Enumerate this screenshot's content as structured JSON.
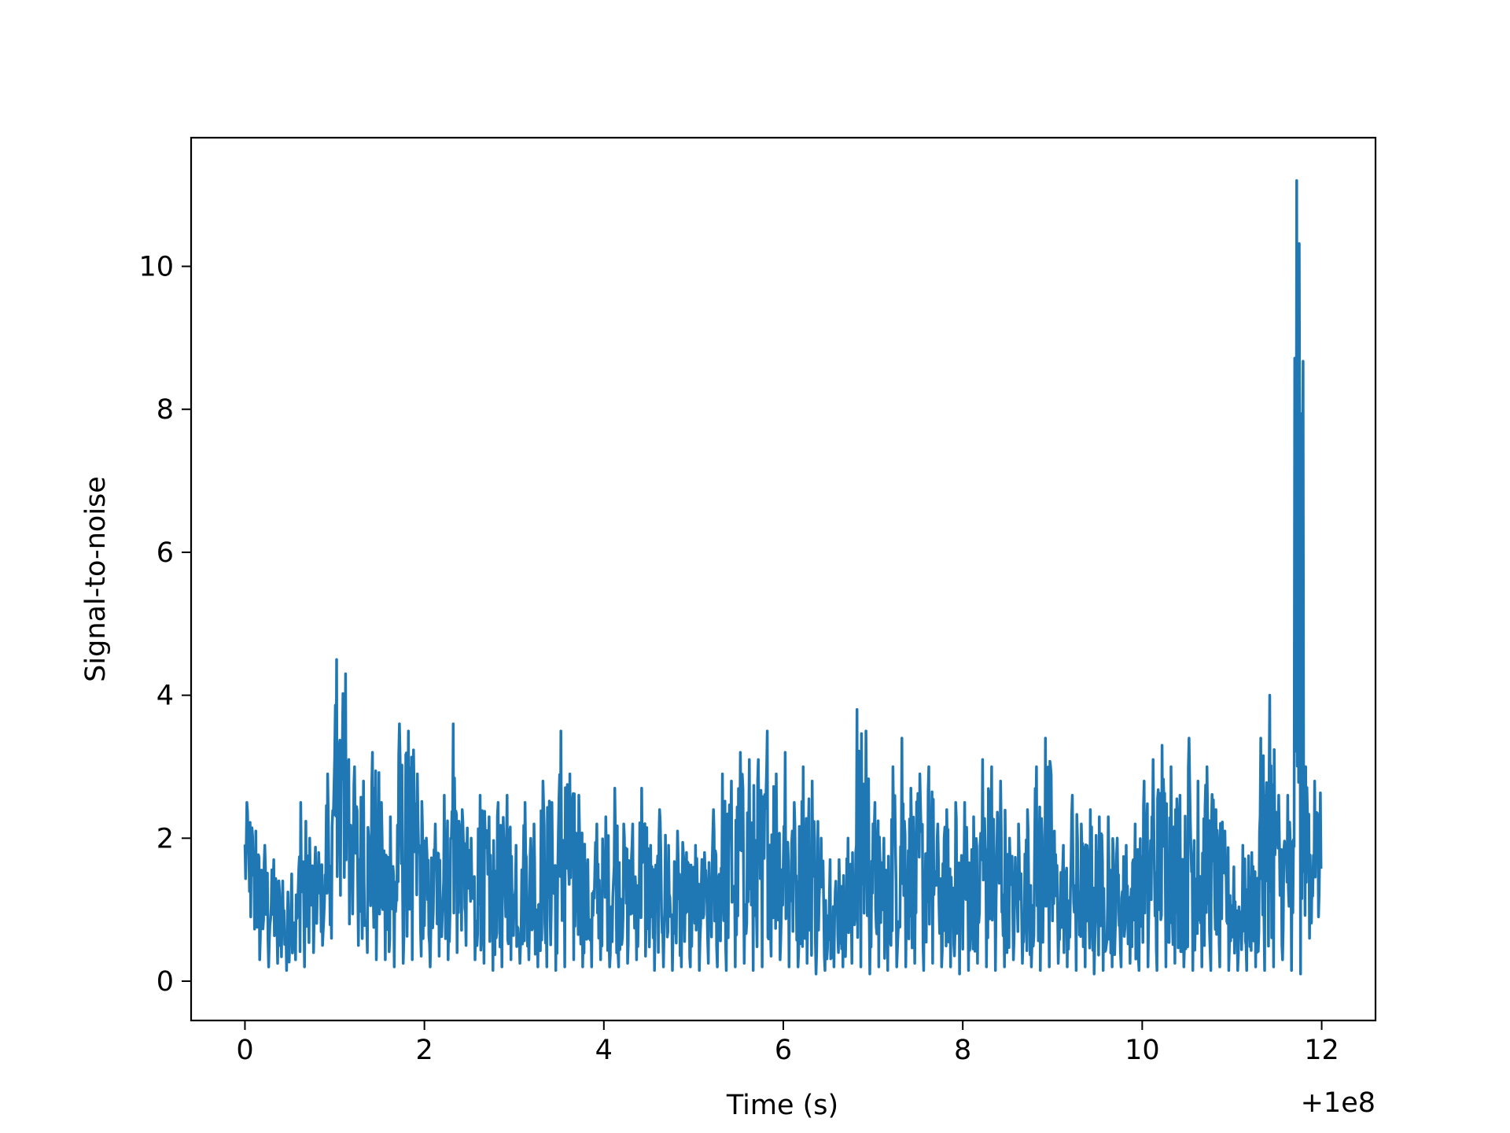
{
  "chart_data": {
    "type": "line",
    "title": "",
    "xlabel": "Time (s)",
    "ylabel": "Signal-to-noise",
    "x_offset_label": "+1e8",
    "xlim": [
      -0.6,
      12.6
    ],
    "ylim": [
      -0.55,
      11.8
    ],
    "xticks": [
      0,
      2,
      4,
      6,
      8,
      10,
      12
    ],
    "yticks": [
      0,
      2,
      4,
      6,
      8,
      10
    ],
    "grid": false,
    "legend": "none",
    "line_color": "#1f77b4",
    "series": [
      {
        "x_start": 0,
        "x_step": 0.1,
        "envelope_min": [
          0.9,
          0.3,
          0.2,
          0.25,
          0.15,
          0.3,
          0.2,
          0.4,
          0.5,
          0.6,
          1.2,
          0.8,
          0.5,
          0.4,
          0.3,
          0.3,
          0.2,
          0.25,
          0.3,
          0.35,
          0.2,
          0.35,
          0.3,
          0.4,
          0.5,
          0.3,
          0.25,
          0.15,
          0.2,
          0.3,
          0.25,
          0.3,
          0.2,
          0.2,
          0.15,
          0.2,
          0.3,
          0.2,
          0.2,
          0.3,
          0.2,
          0.2,
          0.25,
          0.3,
          0.35,
          0.15,
          0.2,
          0.15,
          0.2,
          0.2,
          0.15,
          0.25,
          0.2,
          0.15,
          0.2,
          0.25,
          0.15,
          0.2,
          0.35,
          0.3,
          0.2,
          0.2,
          0.25,
          0.1,
          0.15,
          0.2,
          0.2,
          0.25,
          0.2,
          0.1,
          0.2,
          0.15,
          0.2,
          0.2,
          0.25,
          0.15,
          0.25,
          0.2,
          0.2,
          0.1,
          0.15,
          0.25,
          0.2,
          0.15,
          0.2,
          0.3,
          0.25,
          0.2,
          0.15,
          0.2,
          0.25,
          0.2,
          0.15,
          0.2,
          0.1,
          0.15,
          0.2,
          0.2,
          0.25,
          0.15,
          0.2,
          0.15,
          0.2,
          0.25,
          0.2,
          0.15,
          0.2,
          0.15,
          0.2,
          0.15,
          0.15,
          0.15,
          0.2,
          0.15,
          0.2,
          0.3,
          0.15,
          0.1,
          0.6,
          0.9
        ],
        "envelope_max": [
          2.5,
          2.1,
          1.9,
          1.7,
          1.4,
          1.5,
          2.5,
          2.0,
          1.8,
          2.9,
          4.5,
          4.3,
          3.0,
          2.8,
          3.2,
          2.5,
          2.3,
          3.6,
          3.5,
          2.9,
          2.0,
          2.2,
          2.6,
          3.6,
          2.4,
          2.0,
          2.6,
          2.3,
          2.5,
          2.6,
          1.9,
          2.5,
          2.2,
          2.8,
          2.5,
          3.5,
          2.9,
          2.6,
          1.7,
          2.2,
          2.3,
          2.7,
          2.2,
          2.2,
          2.7,
          1.9,
          2.4,
          1.9,
          2.1,
          1.8,
          1.9,
          1.8,
          2.4,
          2.9,
          2.8,
          3.2,
          3.1,
          3.1,
          3.5,
          2.9,
          3.2,
          2.5,
          3.0,
          2.8,
          2.0,
          1.7,
          1.7,
          2.0,
          3.8,
          3.5,
          2.5,
          2.0,
          3.0,
          3.4,
          2.7,
          2.9,
          3.0,
          2.2,
          2.4,
          2.5,
          2.5,
          2.3,
          3.1,
          3.0,
          2.8,
          2.0,
          2.2,
          2.4,
          3.0,
          3.4,
          2.1,
          1.9,
          2.6,
          2.2,
          2.4,
          2.3,
          2.3,
          2.0,
          1.9,
          2.2,
          2.8,
          3.1,
          3.3,
          3.0,
          2.6,
          3.4,
          2.8,
          3.0,
          2.4,
          2.1,
          1.6,
          1.9,
          1.8,
          3.4,
          4.0,
          2.6,
          2.6,
          11.2,
          3.0,
          2.8
        ]
      }
    ]
  }
}
